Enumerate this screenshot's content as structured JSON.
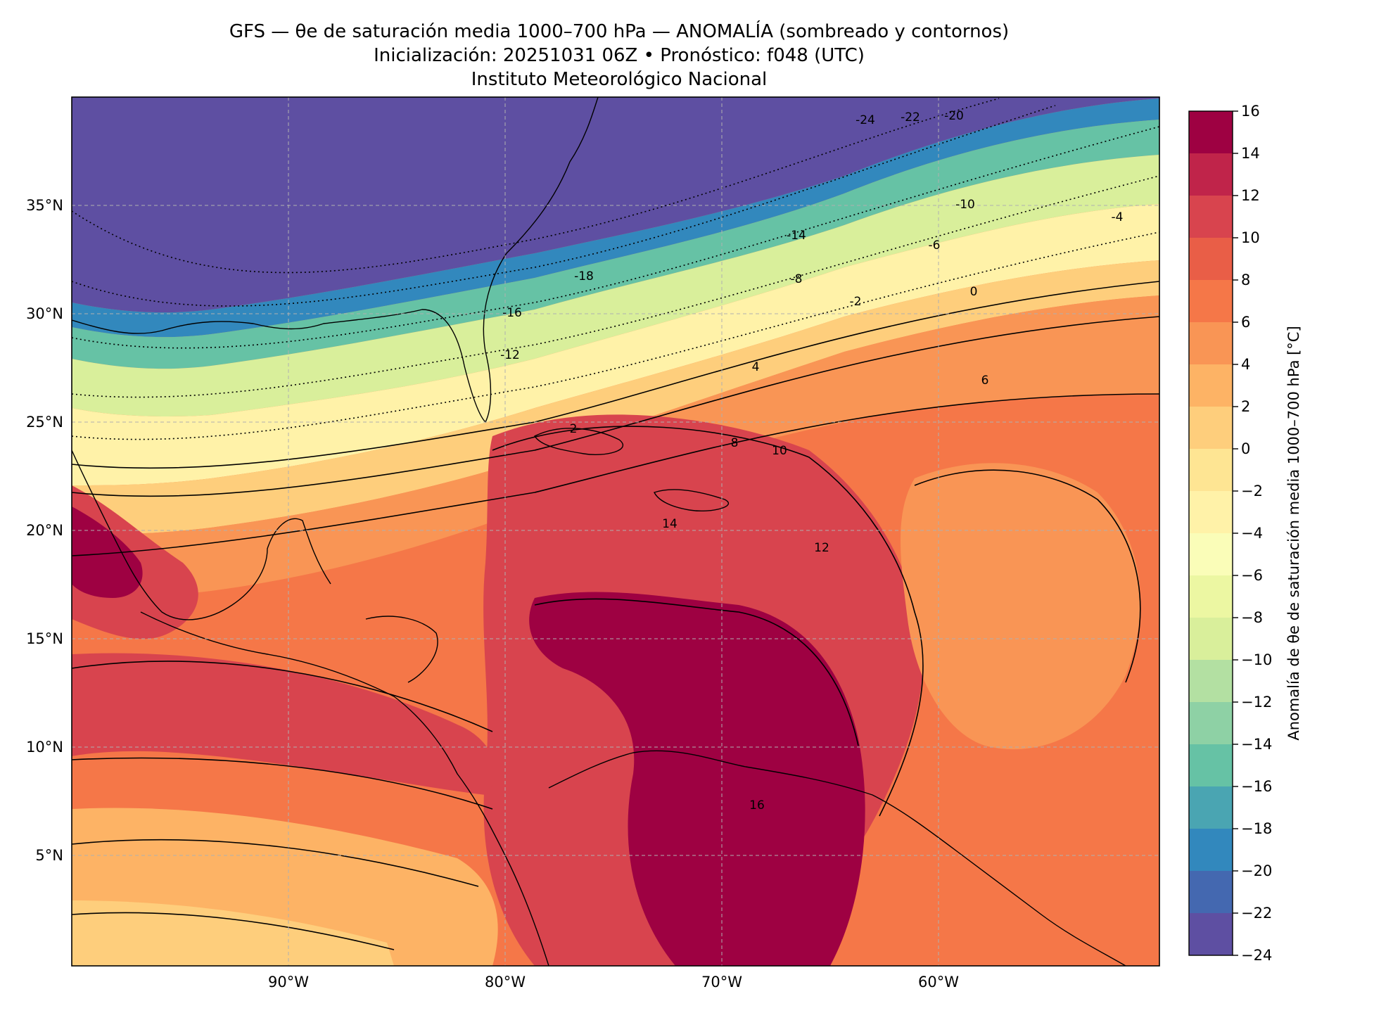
{
  "title": {
    "line1": "GFS — θe de saturación media 1000–700 hPa — ANOMALÍA (sombreado y contornos)",
    "line2": "Inicialización: 20251031 06Z   •   Pronóstico: f048 (UTC)",
    "line3": "Instituto Meteorológico Nacional"
  },
  "axes": {
    "lat_ticks": [
      "35°N",
      "30°N",
      "25°N",
      "20°N",
      "15°N",
      "10°N",
      "5°N"
    ],
    "lon_ticks": [
      "90°W",
      "80°W",
      "70°W",
      "60°W"
    ]
  },
  "colorbar": {
    "label": "Anomalía de θe de saturación media 1000–700 hPa [°C]",
    "ticks": [
      "16",
      "14",
      "12",
      "10",
      "8",
      "6",
      "4",
      "2",
      "0",
      "−2",
      "−4",
      "−6",
      "−8",
      "−10",
      "−12",
      "−14",
      "−16",
      "−18",
      "−20",
      "−22",
      "−24"
    ],
    "colors_top_to_bottom": [
      "#9e0142",
      "#c0244a",
      "#d8444e",
      "#e95e47",
      "#f57748",
      "#f99555",
      "#fdb365",
      "#fece7c",
      "#fee593",
      "#fff2a8",
      "#fafdb8",
      "#ecf7a2",
      "#d9ef9b",
      "#b3e0a2",
      "#8ed1a5",
      "#66c2a5",
      "#4aa5b2",
      "#3288bd",
      "#4468b0",
      "#5e4fa2"
    ]
  },
  "contour_labels": [
    {
      "text": "-24"
    },
    {
      "text": "-22"
    },
    {
      "text": "-20"
    },
    {
      "text": "-18"
    },
    {
      "text": "-16"
    },
    {
      "text": "-14"
    },
    {
      "text": "-12"
    },
    {
      "text": "-10"
    },
    {
      "text": "-8"
    },
    {
      "text": "-6"
    },
    {
      "text": "-4"
    },
    {
      "text": "-2"
    },
    {
      "text": "0"
    },
    {
      "text": "2"
    },
    {
      "text": "4"
    },
    {
      "text": "6"
    },
    {
      "text": "8"
    },
    {
      "text": "10"
    },
    {
      "text": "12"
    },
    {
      "text": "14"
    },
    {
      "text": "16"
    }
  ]
}
